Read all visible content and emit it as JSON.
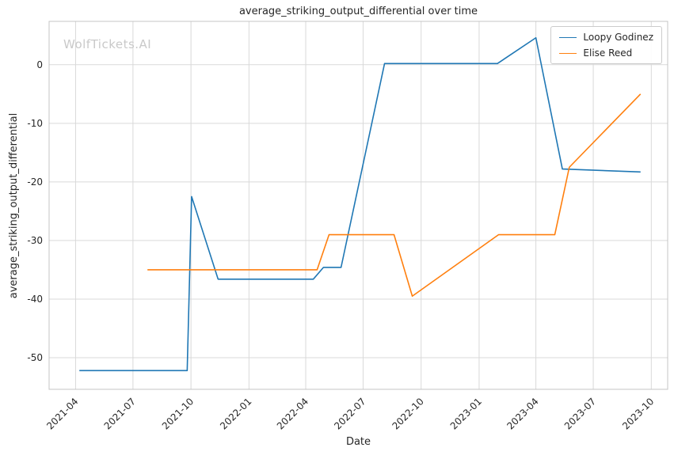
{
  "watermark": "WolfTickets.AI",
  "colors": {
    "grid": "#d9d9d9",
    "spine": "#c4c4c4",
    "text": "#262626",
    "watermark": "#c9c9c9"
  },
  "chart_data": {
    "type": "line",
    "title": "average_striking_output_differential over time",
    "xlabel": "Date",
    "ylabel": "average_striking_output_differential",
    "grid": true,
    "legend_position": "upper right",
    "x_domain": [
      "2021-02-18",
      "2023-10-27"
    ],
    "ylim": [
      -55.4,
      7.4
    ],
    "x_ticks": [
      "2021-04",
      "2021-07",
      "2021-10",
      "2022-01",
      "2022-04",
      "2022-07",
      "2022-10",
      "2023-01",
      "2023-04",
      "2023-07",
      "2023-10"
    ],
    "y_ticks": [
      0,
      -10,
      -20,
      -30,
      -40,
      -50
    ],
    "series": [
      {
        "name": "Loopy Godinez",
        "color": "#1f77b4",
        "points": [
          [
            "2021-04-07",
            -52.2
          ],
          [
            "2021-09-25",
            -52.2
          ],
          [
            "2021-10-02",
            -22.5
          ],
          [
            "2021-11-13",
            -36.6
          ],
          [
            "2022-04-13",
            -36.6
          ],
          [
            "2022-04-29",
            -34.6
          ],
          [
            "2022-05-27",
            -34.6
          ],
          [
            "2022-08-04",
            0.2
          ],
          [
            "2023-01-30",
            0.2
          ],
          [
            "2023-04-01",
            4.6
          ],
          [
            "2023-05-13",
            -17.8
          ],
          [
            "2023-09-14",
            -18.3
          ]
        ]
      },
      {
        "name": "Elise Reed",
        "color": "#ff7f0e",
        "points": [
          [
            "2021-07-24",
            -35.0
          ],
          [
            "2022-04-19",
            -35.0
          ],
          [
            "2022-05-08",
            -29.0
          ],
          [
            "2022-08-19",
            -29.0
          ],
          [
            "2022-09-17",
            -39.5
          ],
          [
            "2023-02-01",
            -29.0
          ],
          [
            "2023-05-01",
            -29.0
          ],
          [
            "2023-05-24",
            -17.5
          ],
          [
            "2023-09-14",
            -5.0
          ]
        ]
      }
    ]
  }
}
